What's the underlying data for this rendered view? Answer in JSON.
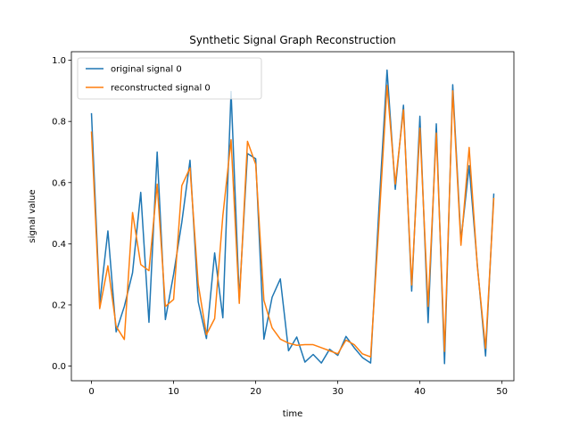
{
  "chart_data": {
    "type": "line",
    "title": "Synthetic Signal Graph Reconstruction",
    "xlabel": "time",
    "ylabel": "signal value",
    "xlim": [
      -2.45,
      51.45
    ],
    "ylim": [
      -0.048,
      1.028
    ],
    "xticks": [
      0,
      10,
      20,
      30,
      40,
      50
    ],
    "yticks": [
      0.0,
      0.2,
      0.4,
      0.6,
      0.8,
      1.0
    ],
    "ytick_labels": [
      "0.0",
      "0.2",
      "0.4",
      "0.6",
      "0.8",
      "1.0"
    ],
    "grid": false,
    "legend": "upper-left",
    "x": [
      0,
      1,
      2,
      3,
      4,
      5,
      6,
      7,
      8,
      9,
      10,
      11,
      12,
      13,
      14,
      15,
      16,
      17,
      18,
      19,
      20,
      21,
      22,
      23,
      24,
      25,
      26,
      27,
      28,
      29,
      30,
      31,
      32,
      33,
      34,
      35,
      36,
      37,
      38,
      39,
      40,
      41,
      42,
      43,
      44,
      45,
      46,
      47,
      48,
      49
    ],
    "series": [
      {
        "name": "original signal 0",
        "color": "#1f77b4",
        "values": [
          0.825,
          0.205,
          0.442,
          0.112,
          0.195,
          0.305,
          0.568,
          0.143,
          0.7,
          0.152,
          0.3,
          0.47,
          0.673,
          0.21,
          0.09,
          0.37,
          0.158,
          0.898,
          0.22,
          0.695,
          0.678,
          0.088,
          0.225,
          0.285,
          0.05,
          0.095,
          0.013,
          0.038,
          0.01,
          0.055,
          0.035,
          0.097,
          0.06,
          0.028,
          0.01,
          0.51,
          0.968,
          0.578,
          0.853,
          0.245,
          0.817,
          0.142,
          0.792,
          0.008,
          0.92,
          0.41,
          0.655,
          0.33,
          0.033,
          0.562
        ]
      },
      {
        "name": "reconstructed signal 0",
        "color": "#ff7f0e",
        "values": [
          0.765,
          0.188,
          0.328,
          0.13,
          0.087,
          0.502,
          0.332,
          0.312,
          0.595,
          0.195,
          0.218,
          0.59,
          0.648,
          0.268,
          0.103,
          0.155,
          0.492,
          0.74,
          0.205,
          0.735,
          0.66,
          0.215,
          0.125,
          0.088,
          0.075,
          0.068,
          0.07,
          0.07,
          0.06,
          0.05,
          0.04,
          0.085,
          0.07,
          0.04,
          0.03,
          0.46,
          0.918,
          0.595,
          0.838,
          0.265,
          0.778,
          0.195,
          0.762,
          0.048,
          0.9,
          0.395,
          0.715,
          0.325,
          0.058,
          0.548
        ]
      }
    ]
  }
}
